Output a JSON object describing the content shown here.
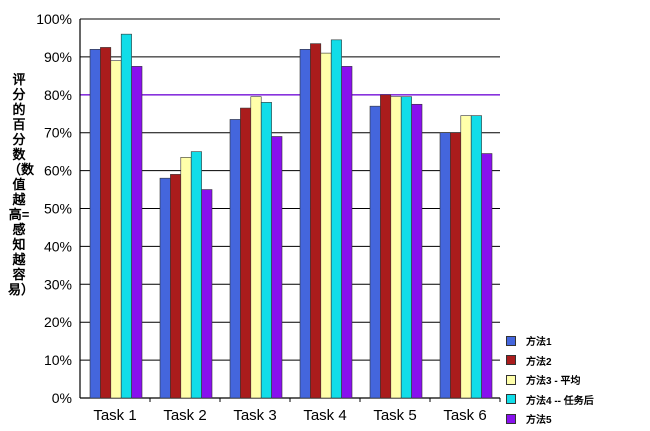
{
  "chart_data": {
    "type": "bar",
    "categories": [
      "Task 1",
      "Task 2",
      "Task 3",
      "Task 4",
      "Task 5",
      "Task 6"
    ],
    "series": [
      {
        "name": "方法1",
        "color": "#4466dd",
        "values": [
          92,
          58,
          73.5,
          92,
          77,
          70
        ]
      },
      {
        "name": "方法2",
        "color": "#aa1c1c",
        "values": [
          92.5,
          59,
          76.5,
          93.5,
          80,
          70
        ]
      },
      {
        "name": "方法3 - 平均",
        "color": "#ffffaa",
        "values": [
          89,
          63.5,
          79.5,
          91,
          79.5,
          74.5
        ]
      },
      {
        "name": "方法4 -- 任务后",
        "color": "#11dde8",
        "values": [
          96,
          65,
          78,
          94.5,
          79.5,
          74.5
        ]
      },
      {
        "name": "方法5",
        "color": "#8811ee",
        "values": [
          87.5,
          55,
          69,
          87.5,
          77.5,
          64.5
        ]
      }
    ],
    "ylabel": "评分的百分数（数值越高=感知越容易）",
    "ylim": [
      0,
      100
    ],
    "yticks": [
      "0%",
      "10%",
      "20%",
      "30%",
      "40%",
      "50%",
      "60%",
      "70%",
      "80%",
      "90%",
      "100%"
    ],
    "grid": true,
    "gridlines_highlighted": [
      "80%"
    ],
    "grid_color": "#000000",
    "highlight_grid_color": "#8833dd",
    "legend": "bottom-right"
  }
}
